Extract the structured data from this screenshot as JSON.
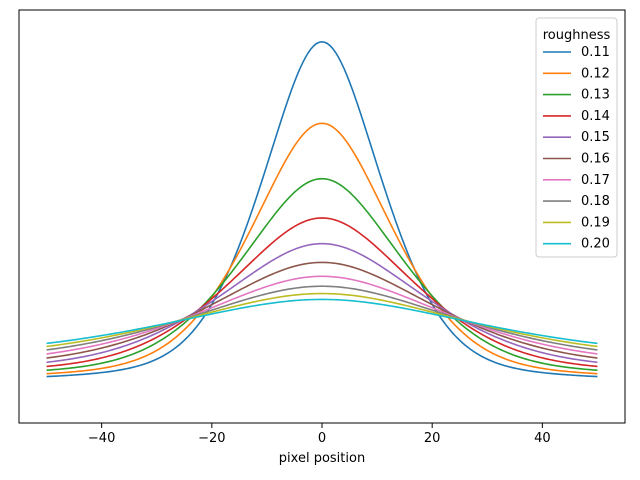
{
  "chart_data": {
    "type": "line",
    "title": "",
    "xlabel": "pixel position",
    "ylabel": "",
    "xlim": [
      -55,
      55
    ],
    "ylim": [
      0,
      1
    ],
    "x_ticks": [
      -40,
      -20,
      0,
      20,
      40
    ],
    "x_tick_labels": [
      "−40",
      "−20",
      "0",
      "20",
      "40"
    ],
    "y_ticks_visible": false,
    "grid": false,
    "legend": {
      "title": "roughness",
      "placement": "top-right"
    },
    "x_range": [
      -50,
      50
    ],
    "series": [
      {
        "name": "0.11",
        "color": "#1f77b4",
        "peak": 0.976,
        "tail": 0.05,
        "width": 11.5
      },
      {
        "name": "0.12",
        "color": "#ff7f0e",
        "peak": 0.754,
        "tail": 0.058,
        "width": 13.5
      },
      {
        "name": "0.13",
        "color": "#2ca02c",
        "peak": 0.603,
        "tail": 0.067,
        "width": 15.5
      },
      {
        "name": "0.14",
        "color": "#d62728",
        "peak": 0.496,
        "tail": 0.076,
        "width": 17.5
      },
      {
        "name": "0.15",
        "color": "#9467bd",
        "peak": 0.426,
        "tail": 0.085,
        "width": 19.5
      },
      {
        "name": "0.16",
        "color": "#8c564b",
        "peak": 0.375,
        "tail": 0.094,
        "width": 21.5
      },
      {
        "name": "0.17",
        "color": "#e377c2",
        "peak": 0.337,
        "tail": 0.103,
        "width": 23.5
      },
      {
        "name": "0.18",
        "color": "#7f7f7f",
        "peak": 0.31,
        "tail": 0.112,
        "width": 25.5
      },
      {
        "name": "0.19",
        "color": "#bcbd22",
        "peak": 0.29,
        "tail": 0.12,
        "width": 27.5
      },
      {
        "name": "0.20",
        "color": "#17becf",
        "peak": 0.274,
        "tail": 0.128,
        "width": 29.5
      }
    ]
  }
}
